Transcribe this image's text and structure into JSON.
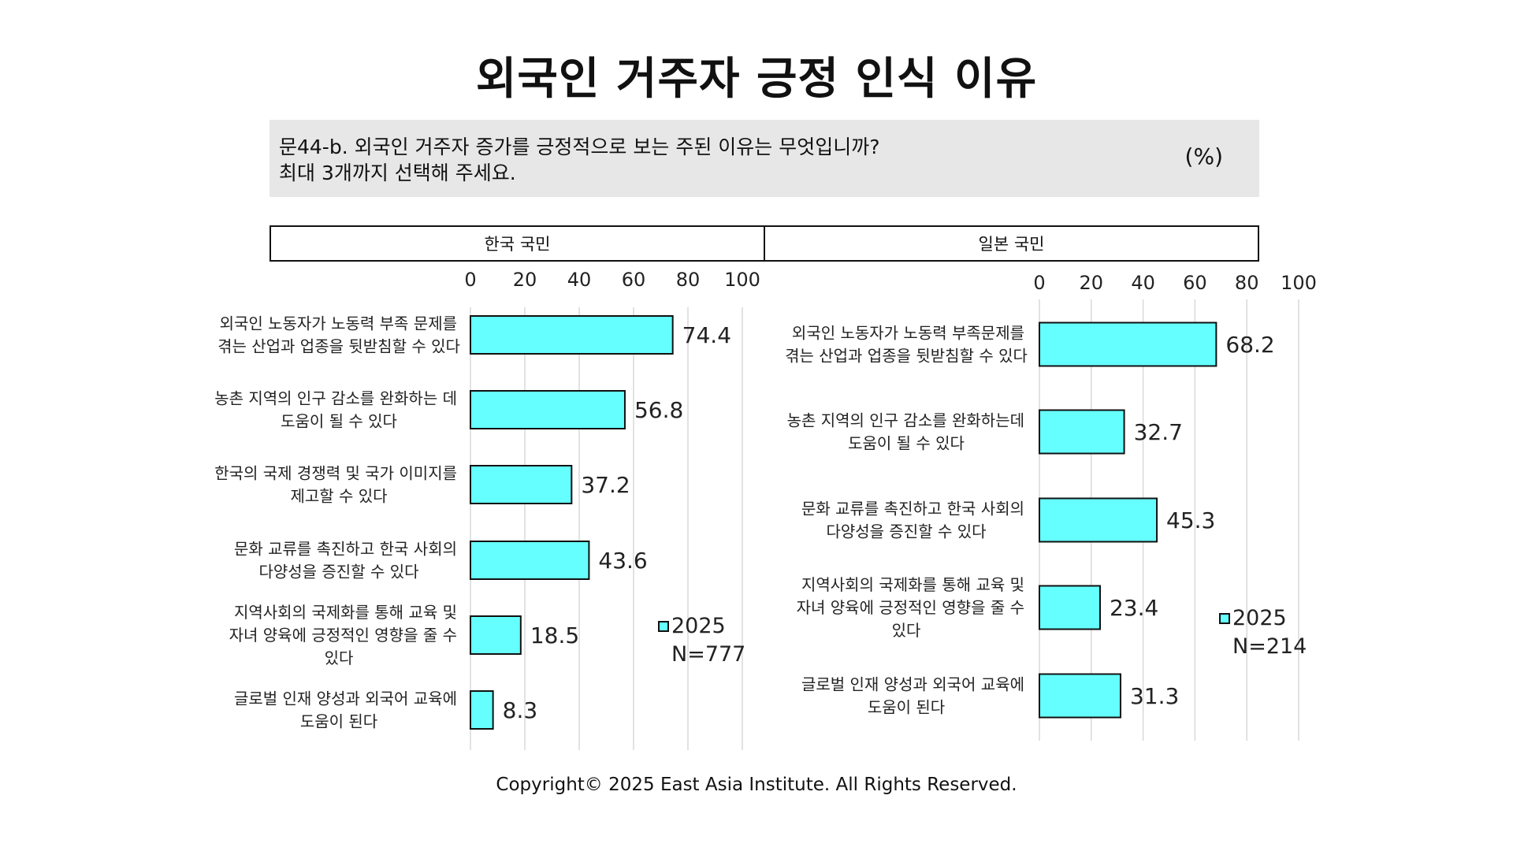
{
  "title": "외국인 거주자 긍정 인식 이유",
  "question": {
    "line1": "문44-b. 외국인 거주자 증가를 긍정적으로 보는 주된 이유는 무엇입니까?",
    "line2": "최대 3개까지 선택해 주세요.",
    "unit": "(%)"
  },
  "copyright": "Copyright© 2025 East Asia Institute. All Rights Reserved.",
  "colors": {
    "bar": "#66ffff",
    "bar_stroke": "#111111",
    "grid": "#d9d9d9"
  },
  "chart_data": [
    {
      "type": "bar",
      "orientation": "horizontal",
      "panel_label": "한국 국민",
      "xlim": [
        0,
        100
      ],
      "xticks": [
        "0",
        "20",
        "40",
        "60",
        "80",
        "100"
      ],
      "categories": [
        [
          "외국인 노동자가 노동력 부족 문제를",
          "겪는 산업과 업종을 뒷받침할 수 있다"
        ],
        [
          "농촌 지역의 인구 감소를 완화하는 데",
          "도움이 될 수 있다"
        ],
        [
          "한국의 국제 경쟁력 및 국가 이미지를",
          "제고할 수 있다"
        ],
        [
          "문화 교류를 촉진하고 한국 사회의",
          "다양성을 증진할 수 있다"
        ],
        [
          "지역사회의 국제화를 통해 교육 및",
          "자녀 양육에 긍정적인 영향을 줄 수",
          "있다"
        ],
        [
          "글로벌 인재 양성과 외국어 교육에",
          "도움이 된다"
        ]
      ],
      "series": [
        {
          "name": "2025",
          "values": [
            74.4,
            56.8,
            37.2,
            43.6,
            18.5,
            8.3
          ]
        }
      ],
      "legend": {
        "label": "2025",
        "n": "N=777",
        "placement": "right"
      },
      "grid": true
    },
    {
      "type": "bar",
      "orientation": "horizontal",
      "panel_label": "일본 국민",
      "xlim": [
        0,
        100
      ],
      "xticks": [
        "0",
        "20",
        "40",
        "60",
        "80",
        "100"
      ],
      "categories": [
        [
          "외국인 노동자가 노동력 부족문제를",
          "겪는 산업과 업종을 뒷받침할 수 있다"
        ],
        [
          "농촌 지역의 인구 감소를 완화하는데",
          "도움이 될 수 있다"
        ],
        [
          "문화 교류를 촉진하고 한국 사회의",
          "다양성을 증진할 수 있다"
        ],
        [
          "지역사회의 국제화를 통해 교육 및",
          "자녀 양육에 긍정적인 영향을 줄 수",
          "있다"
        ],
        [
          "글로벌 인재 양성과 외국어 교육에",
          "도움이 된다"
        ]
      ],
      "series": [
        {
          "name": "2025",
          "values": [
            68.2,
            32.7,
            45.3,
            23.4,
            31.3
          ]
        }
      ],
      "legend": {
        "label": "2025",
        "n": "N=214",
        "placement": "right"
      },
      "grid": true
    }
  ]
}
